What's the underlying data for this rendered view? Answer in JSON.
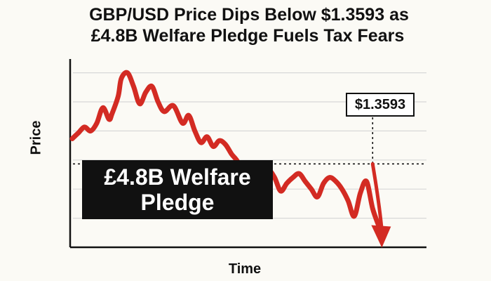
{
  "title": {
    "line1": "GBP/USD Price Dips Below $1.3593 as",
    "line2": "£4.8B Welfare Pledge Fuels Tax Fears"
  },
  "callout": {
    "line1": "£4.8B Welfare",
    "line2": "Pledge"
  },
  "price_tag": "$1.3593",
  "colors": {
    "series": "#d32b23",
    "axis": "#111111",
    "grid": "#d8d8d8",
    "background": "#fbfaf5"
  },
  "chart_data": {
    "type": "line",
    "title": "GBP/USD Price Dips Below $1.3593 as £4.8B Welfare Pledge Fuels Tax Fears",
    "xlabel": "Time",
    "ylabel": "Price",
    "grid": true,
    "x": [
      0,
      2,
      4,
      6,
      8,
      10,
      12,
      13,
      15,
      16,
      18,
      20,
      22,
      24,
      26,
      28,
      30,
      33,
      36,
      38,
      40,
      42,
      44,
      46,
      48,
      50,
      52,
      54,
      56,
      58,
      60,
      62,
      64,
      66,
      68,
      70,
      72,
      74,
      76,
      78,
      80,
      82,
      84,
      86,
      88,
      90,
      92,
      94,
      96,
      98,
      100
    ],
    "values": [
      1.3606,
      1.3609,
      1.3612,
      1.361,
      1.3614,
      1.3622,
      1.3616,
      1.3619,
      1.3628,
      1.3637,
      1.364,
      1.3633,
      1.3624,
      1.363,
      1.3633,
      1.3625,
      1.362,
      1.3623,
      1.3614,
      1.3618,
      1.361,
      1.3604,
      1.3607,
      1.3602,
      1.3605,
      1.3603,
      1.3598,
      1.3594,
      1.3586,
      1.358,
      1.3584,
      1.3588,
      1.359,
      1.3586,
      1.3579,
      1.3583,
      1.3586,
      1.3588,
      1.3584,
      1.358,
      1.3576,
      1.3583,
      1.3586,
      1.3584,
      1.358,
      1.3574,
      1.3566,
      1.3578,
      1.3584,
      1.357,
      1.3561
    ],
    "reference_line": {
      "value": 1.3593,
      "style": "dashed",
      "label": "$1.3593"
    },
    "ylim": [
      1.355,
      1.365
    ],
    "xlim": [
      0,
      100
    ],
    "trend_arrow": {
      "start": [
        98,
        1.3593
      ],
      "end": [
        101,
        1.3552
      ],
      "direction": "down"
    }
  }
}
